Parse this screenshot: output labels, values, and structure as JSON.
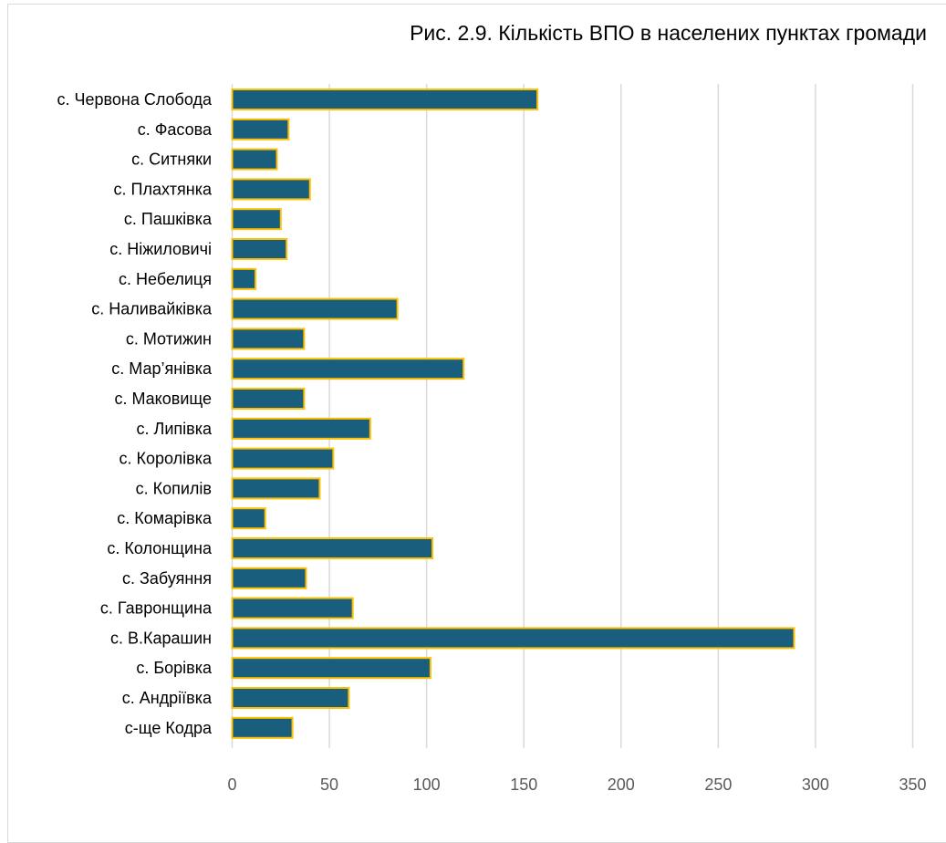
{
  "chart_data": {
    "type": "bar",
    "orientation": "horizontal",
    "title": "Рис. 2.9. Кількість ВПО в населених пунктах громади",
    "categories": [
      "с. Червона Слобода",
      "с. Фасова",
      "с. Ситняки",
      "с. Плахтянка",
      "с. Пашківка",
      "с. Ніжиловичі",
      "с. Небелиця",
      "с. Наливайківка",
      "с. Мотижин",
      "с. Мар’янівка",
      "с. Маковище",
      "с. Липівка",
      "с. Королівка",
      "с. Копилів",
      "с. Комарівка",
      "с. Колонщина",
      "с. Забуяння",
      "с. Гавронщина",
      "с. В.Карашин",
      "с. Борівка",
      "с. Андріївка",
      "с-ще Кодра"
    ],
    "values": [
      157,
      29,
      23,
      40,
      25,
      28,
      12,
      85,
      37,
      119,
      37,
      71,
      52,
      45,
      17,
      103,
      38,
      62,
      289,
      102,
      60,
      31
    ],
    "xlim": [
      0,
      350
    ],
    "xticks": [
      0,
      50,
      100,
      150,
      200,
      250,
      300,
      350
    ],
    "grid": "vertical",
    "legend": "none",
    "colors": {
      "bar_fill": "#1a5e7e",
      "bar_stroke": "#ffc000",
      "grid": "#d9d9d9",
      "text": "#000000",
      "tick_text": "#595959"
    }
  }
}
